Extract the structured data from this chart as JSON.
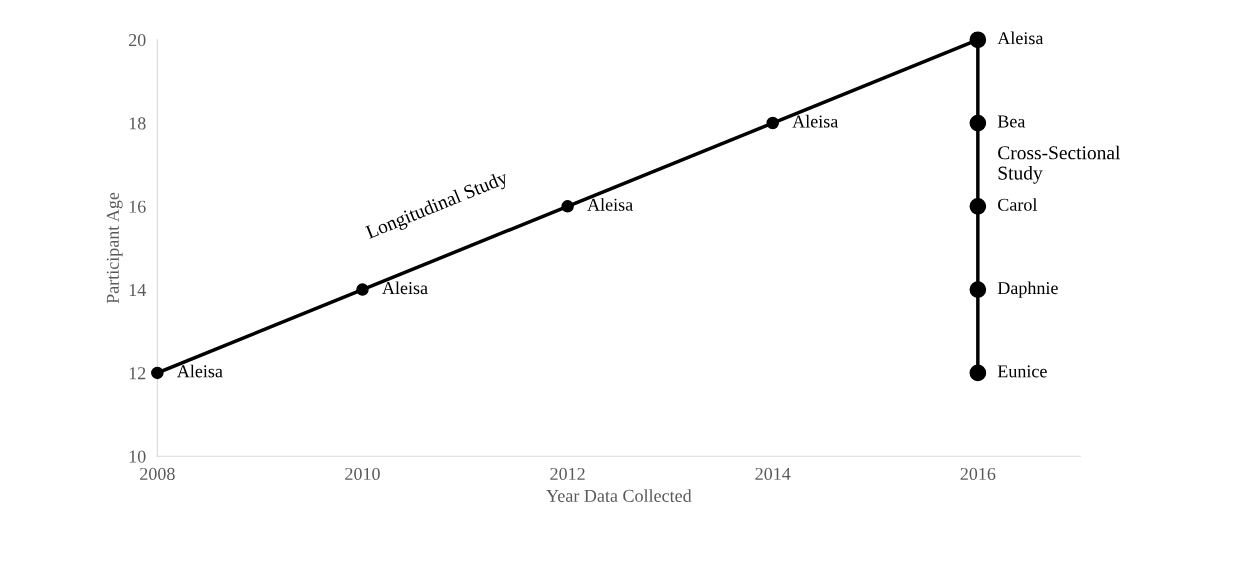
{
  "chart_data": {
    "type": "line",
    "xlabel": "Year Data Collected",
    "ylabel": "Participant Age",
    "xlim": [
      2008,
      2017
    ],
    "xticks": [
      2008,
      2010,
      2012,
      2014,
      2016
    ],
    "ylim": [
      10,
      20
    ],
    "yticks": [
      10,
      12,
      14,
      16,
      18,
      20
    ],
    "grid": false,
    "legend": false,
    "marker": "circle",
    "line_style": "solid",
    "series": [
      {
        "name": "Longitudinal Study",
        "color": "#000000",
        "x": [
          2008,
          2010,
          2012,
          2014,
          2016
        ],
        "values": [
          12,
          14,
          16,
          18,
          20
        ]
      },
      {
        "name": "Cross-Sectional Study",
        "color": "#000000",
        "x": [
          2016,
          2016,
          2016,
          2016,
          2016
        ],
        "values": [
          20,
          18,
          16,
          14,
          12
        ]
      }
    ],
    "annotations": [
      {
        "text": "Aleisa",
        "x": 2008,
        "y": 12
      },
      {
        "text": "Aleisa",
        "x": 2010,
        "y": 14
      },
      {
        "text": "Aleisa",
        "x": 2012,
        "y": 16
      },
      {
        "text": "Aleisa",
        "x": 2014,
        "y": 18
      },
      {
        "text": "Aleisa",
        "x": 2016,
        "y": 20
      },
      {
        "text": "Bea",
        "x": 2016,
        "y": 18
      },
      {
        "text": "Carol",
        "x": 2016,
        "y": 16
      },
      {
        "text": "Daphnie",
        "x": 2016,
        "y": 14
      },
      {
        "text": "Eunice",
        "x": 2016,
        "y": 12
      }
    ]
  }
}
